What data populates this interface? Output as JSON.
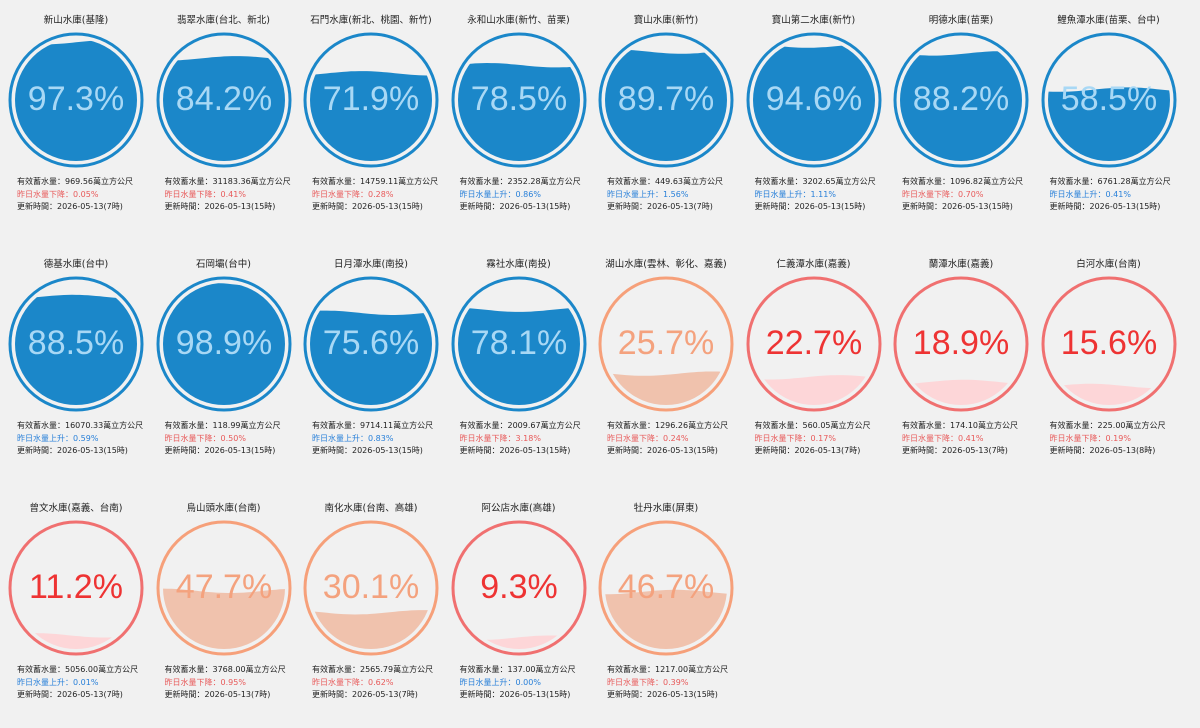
{
  "labels": {
    "capacity_prefix": "有效蓄水量：",
    "capacity_unit": "萬立方公尺",
    "change_up": "昨日水量上升：",
    "change_down": "昨日水量下降：",
    "update_prefix": "更新時間：",
    "percent_suffix": "%"
  },
  "colors": {
    "high_fill": "#1b87c9",
    "high_ring": "#1b87c9",
    "high_text": "#a8d8f5",
    "mid_ring": "#f6a07a",
    "mid_fill": "#f0c2ad",
    "mid_text": "#f4a27e",
    "low_ring": "#f07070",
    "low_fill": "#fdd6d8",
    "low_text": "#ee3333",
    "down_text": "#e85a5a",
    "up_text": "#2980d9"
  },
  "reservoirs": [
    {
      "name": "新山水庫(基隆)",
      "percent": "97.3",
      "level": 0.973,
      "status": "high",
      "capacity": "969.56",
      "change_dir": "down",
      "change": "0.05%",
      "updated": "2026-05-13(7時)"
    },
    {
      "name": "翡翠水庫(台北、新北)",
      "percent": "84.2",
      "level": 0.842,
      "status": "high",
      "capacity": "31183.36",
      "change_dir": "down",
      "change": "0.41%",
      "updated": "2026-05-13(15時)"
    },
    {
      "name": "石門水庫(新北、桃園、新竹)",
      "percent": "71.9",
      "level": 0.719,
      "status": "high",
      "capacity": "14759.11",
      "change_dir": "down",
      "change": "0.28%",
      "updated": "2026-05-13(15時)"
    },
    {
      "name": "永和山水庫(新竹、苗栗)",
      "percent": "78.5",
      "level": 0.785,
      "status": "high",
      "capacity": "2352.28",
      "change_dir": "up",
      "change": "0.86%",
      "updated": "2026-05-13(15時)"
    },
    {
      "name": "寶山水庫(新竹)",
      "percent": "89.7",
      "level": 0.897,
      "status": "high",
      "capacity": "449.63",
      "change_dir": "up",
      "change": "1.56%",
      "updated": "2026-05-13(7時)"
    },
    {
      "name": "寶山第二水庫(新竹)",
      "percent": "94.6",
      "level": 0.946,
      "status": "high",
      "capacity": "3202.65",
      "change_dir": "up",
      "change": "1.11%",
      "updated": "2026-05-13(15時)"
    },
    {
      "name": "明德水庫(苗栗)",
      "percent": "88.2",
      "level": 0.882,
      "status": "high",
      "capacity": "1096.82",
      "change_dir": "down",
      "change": "0.70%",
      "updated": "2026-05-13(15時)"
    },
    {
      "name": "鯉魚潭水庫(苗栗、台中)",
      "percent": "58.5",
      "level": 0.585,
      "status": "high",
      "capacity": "6761.28",
      "change_dir": "up",
      "change": "0.41%",
      "updated": "2026-05-13(15時)"
    },
    {
      "name": "德基水庫(台中)",
      "percent": "88.5",
      "level": 0.885,
      "status": "high",
      "capacity": "16070.33",
      "change_dir": "up",
      "change": "0.59%",
      "updated": "2026-05-13(15時)"
    },
    {
      "name": "石岡壩(台中)",
      "percent": "98.9",
      "level": 0.989,
      "status": "high",
      "capacity": "118.99",
      "change_dir": "down",
      "change": "0.50%",
      "updated": "2026-05-13(15時)"
    },
    {
      "name": "日月潭水庫(南投)",
      "percent": "75.6",
      "level": 0.756,
      "status": "high",
      "capacity": "9714.11",
      "change_dir": "up",
      "change": "0.83%",
      "updated": "2026-05-13(15時)"
    },
    {
      "name": "霧社水庫(南投)",
      "percent": "78.1",
      "level": 0.781,
      "status": "high",
      "capacity": "2009.67",
      "change_dir": "down",
      "change": "3.18%",
      "updated": "2026-05-13(15時)"
    },
    {
      "name": "湖山水庫(雲林、彰化、嘉義)",
      "percent": "25.7",
      "level": 0.257,
      "status": "mid",
      "capacity": "1296.26",
      "change_dir": "down",
      "change": "0.24%",
      "updated": "2026-05-13(15時)"
    },
    {
      "name": "仁義潭水庫(嘉義)",
      "percent": "22.7",
      "level": 0.227,
      "status": "low",
      "capacity": "560.05",
      "change_dir": "down",
      "change": "0.17%",
      "updated": "2026-05-13(7時)"
    },
    {
      "name": "蘭潭水庫(嘉義)",
      "percent": "18.9",
      "level": 0.189,
      "status": "low",
      "capacity": "174.10",
      "change_dir": "down",
      "change": "0.41%",
      "updated": "2026-05-13(7時)"
    },
    {
      "name": "白河水庫(台南)",
      "percent": "15.6",
      "level": 0.156,
      "status": "low",
      "capacity": "225.00",
      "change_dir": "down",
      "change": "0.19%",
      "updated": "2026-05-13(8時)"
    },
    {
      "name": "曾文水庫(嘉義、台南)",
      "percent": "11.2",
      "level": 0.112,
      "status": "low",
      "capacity": "5056.00",
      "change_dir": "up",
      "change": "0.01%",
      "updated": "2026-05-13(7時)"
    },
    {
      "name": "烏山頭水庫(台南)",
      "percent": "47.7",
      "level": 0.477,
      "status": "mid",
      "capacity": "3768.00",
      "change_dir": "down",
      "change": "0.95%",
      "updated": "2026-05-13(7時)"
    },
    {
      "name": "南化水庫(台南、高雄)",
      "percent": "30.1",
      "level": 0.301,
      "status": "mid",
      "capacity": "2565.79",
      "change_dir": "down",
      "change": "0.62%",
      "updated": "2026-05-13(7時)"
    },
    {
      "name": "阿公店水庫(高雄)",
      "percent": "9.3",
      "level": 0.093,
      "status": "low",
      "capacity": "137.00",
      "change_dir": "up",
      "change": "0.00%",
      "updated": "2026-05-13(15時)"
    },
    {
      "name": "牡丹水庫(屏東)",
      "percent": "46.7",
      "level": 0.467,
      "status": "mid",
      "capacity": "1217.00",
      "change_dir": "down",
      "change": "0.39%",
      "updated": "2026-05-13(15時)"
    }
  ]
}
